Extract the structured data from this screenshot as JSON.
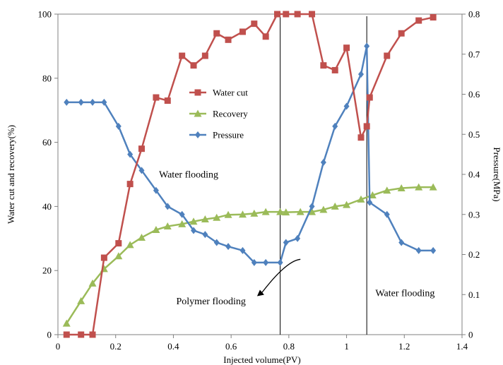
{
  "chart_data": {
    "type": "line",
    "xlabel": "Injected volume(PV)",
    "ylabel_left": "Water cut and recovery(%)",
    "ylabel_right": "Pressure(MPa)",
    "xlim": [
      0,
      1.4
    ],
    "ylim_left": [
      0,
      100
    ],
    "ylim_right": [
      0,
      0.8
    ],
    "x_ticks": [
      "0",
      "0.2",
      "0.4",
      "0.6",
      "0.8",
      "1",
      "1.2",
      "1.4"
    ],
    "y_ticks_left": [
      "0",
      "20",
      "40",
      "60",
      "80",
      "100"
    ],
    "y_ticks_right": [
      "0",
      "0.1",
      "0.2",
      "0.3",
      "0.4",
      "0.5",
      "0.6",
      "0.7",
      "0.8"
    ],
    "grid": false,
    "legend_position": "upper-center",
    "series": [
      {
        "name": "Water cut",
        "axis": "left",
        "color": "#C0504D",
        "marker": "square",
        "points": [
          [
            0.03,
            0
          ],
          [
            0.08,
            0
          ],
          [
            0.12,
            0
          ],
          [
            0.16,
            24
          ],
          [
            0.21,
            28.5
          ],
          [
            0.25,
            47
          ],
          [
            0.29,
            58
          ],
          [
            0.34,
            74
          ],
          [
            0.38,
            73
          ],
          [
            0.43,
            87
          ],
          [
            0.47,
            84
          ],
          [
            0.51,
            87
          ],
          [
            0.55,
            94
          ],
          [
            0.59,
            92
          ],
          [
            0.64,
            94.5
          ],
          [
            0.68,
            97
          ],
          [
            0.72,
            93
          ],
          [
            0.76,
            100
          ],
          [
            0.79,
            100
          ],
          [
            0.83,
            100
          ],
          [
            0.88,
            100
          ],
          [
            0.92,
            84
          ],
          [
            0.96,
            82.5
          ],
          [
            1.0,
            89.5
          ],
          [
            1.05,
            61.5
          ],
          [
            1.07,
            65
          ],
          [
            1.08,
            74
          ],
          [
            1.14,
            87
          ],
          [
            1.19,
            94
          ],
          [
            1.25,
            98
          ],
          [
            1.3,
            99
          ]
        ]
      },
      {
        "name": "Recovery",
        "axis": "left",
        "color": "#9BBB59",
        "marker": "triangle",
        "points": [
          [
            0.03,
            3.5
          ],
          [
            0.08,
            10.5
          ],
          [
            0.12,
            16
          ],
          [
            0.16,
            20.5
          ],
          [
            0.21,
            24.5
          ],
          [
            0.25,
            28
          ],
          [
            0.29,
            30.3
          ],
          [
            0.34,
            32.7
          ],
          [
            0.38,
            33.8
          ],
          [
            0.43,
            34.5
          ],
          [
            0.47,
            35.3
          ],
          [
            0.51,
            36
          ],
          [
            0.55,
            36.5
          ],
          [
            0.59,
            37.4
          ],
          [
            0.64,
            37.5
          ],
          [
            0.68,
            37.8
          ],
          [
            0.72,
            38.3
          ],
          [
            0.77,
            38.3
          ],
          [
            0.79,
            38.2
          ],
          [
            0.84,
            38.3
          ],
          [
            0.88,
            38.3
          ],
          [
            0.92,
            39
          ],
          [
            0.96,
            40
          ],
          [
            1.0,
            40.5
          ],
          [
            1.05,
            42.2
          ],
          [
            1.09,
            43.5
          ],
          [
            1.14,
            45
          ],
          [
            1.19,
            45.7
          ],
          [
            1.25,
            46
          ],
          [
            1.3,
            46
          ]
        ]
      },
      {
        "name": "Pressure",
        "axis": "right",
        "color": "#4F81BD",
        "marker": "diamond",
        "points": [
          [
            0.03,
            0.58
          ],
          [
            0.08,
            0.58
          ],
          [
            0.12,
            0.58
          ],
          [
            0.16,
            0.58
          ],
          [
            0.21,
            0.52
          ],
          [
            0.25,
            0.45
          ],
          [
            0.29,
            0.41
          ],
          [
            0.34,
            0.36
          ],
          [
            0.38,
            0.32
          ],
          [
            0.43,
            0.3
          ],
          [
            0.47,
            0.26
          ],
          [
            0.51,
            0.25
          ],
          [
            0.55,
            0.23
          ],
          [
            0.59,
            0.22
          ],
          [
            0.64,
            0.21
          ],
          [
            0.68,
            0.18
          ],
          [
            0.72,
            0.18
          ],
          [
            0.77,
            0.18
          ],
          [
            0.79,
            0.23
          ],
          [
            0.83,
            0.24
          ],
          [
            0.88,
            0.32
          ],
          [
            0.92,
            0.43
          ],
          [
            0.96,
            0.52
          ],
          [
            1.0,
            0.57
          ],
          [
            1.05,
            0.65
          ],
          [
            1.07,
            0.72
          ],
          [
            1.08,
            0.33
          ],
          [
            1.14,
            0.3
          ],
          [
            1.19,
            0.23
          ],
          [
            1.25,
            0.21
          ],
          [
            1.3,
            0.21
          ]
        ]
      }
    ],
    "vertical_lines": [
      0.77,
      1.07
    ],
    "annotations": [
      {
        "text": "Water flooding",
        "x": 0.35,
        "y": 49
      },
      {
        "text": "Polymer flooding",
        "x": 0.41,
        "y": 9.5
      },
      {
        "text": "Water flooding",
        "x": 1.1,
        "y": 12
      }
    ],
    "arrow": {
      "from": [
        0.84,
        23.5
      ],
      "to": [
        0.69,
        12
      ]
    }
  }
}
